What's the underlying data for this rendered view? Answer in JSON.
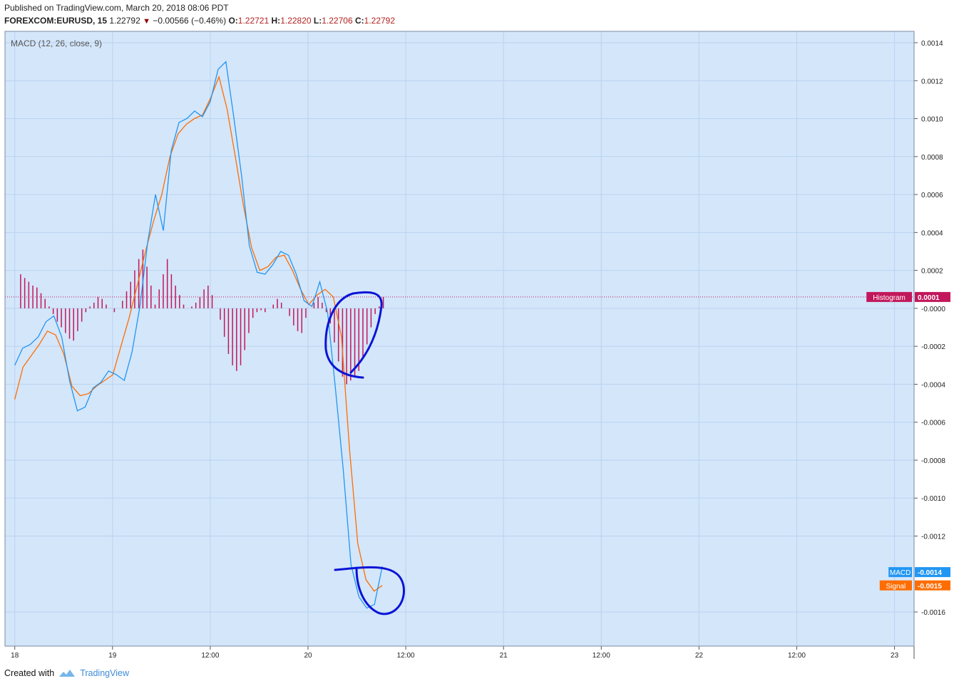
{
  "header": {
    "published": "Published on TradingView.com, March 20, 2018 08:06 PDT",
    "symbol": "FOREXCOM:EURUSD, 15",
    "last": "1.22792",
    "change": "−0.00566 (−0.46%)",
    "o_label": "O:",
    "o_value": "1.22721",
    "h_label": "H:",
    "h_value": "1.22820",
    "l_label": "L:",
    "l_value": "1.22706",
    "c_label": "C:",
    "c_value": "1.22792"
  },
  "footer": {
    "created": "Created with",
    "brand": "TradingView"
  },
  "colors": {
    "background": "#d4e6fa",
    "grid": "#b9d3ef",
    "macd": "#2196f3",
    "signal": "#ff6d00",
    "histogram": "#c2185b",
    "annotation": "#0a14d6"
  },
  "chart_data": {
    "type": "line",
    "title": "MACD (12, 26, close, 9)",
    "x_ticks": [
      "18",
      "19",
      "12:00",
      "20",
      "12:00",
      "21",
      "12:00",
      "22",
      "12:00",
      "23"
    ],
    "y_ticks": [
      "0.0014",
      "0.0012",
      "0.0010",
      "0.0008",
      "0.0006",
      "0.0004",
      "0.0002",
      "-0.0000",
      "-0.0002",
      "-0.0004",
      "-0.0006",
      "-0.0008",
      "-0.0010",
      "-0.0012",
      "-0.0016"
    ],
    "ylim": [
      -0.00178,
      0.00146
    ],
    "xlim": [
      -1,
      92
    ],
    "grid": true,
    "series": [
      {
        "name": "MACD",
        "color": "#2196f3",
        "values": [
          -0.0003,
          -0.00021,
          -0.00019,
          -0.00015,
          -7e-05,
          -4e-05,
          -0.00015,
          -0.00038,
          -0.00054,
          -0.00052,
          -0.00042,
          -0.00039,
          -0.00033,
          -0.00035,
          -0.00038,
          -0.00023,
          1e-05,
          0.00035,
          0.0006,
          0.00041,
          0.00083,
          0.00098,
          0.001,
          0.00104,
          0.00101,
          0.00109,
          0.00126,
          0.0013,
          0.00101,
          0.0007,
          0.00033,
          0.00019,
          0.00018,
          0.00023,
          0.0003,
          0.00028,
          0.00018,
          4e-05,
          1e-05,
          0.00014,
          -2e-05,
          -0.00042,
          -0.00085,
          -0.00135,
          -0.00152,
          -0.00158,
          -0.00156,
          -0.00136
        ]
      },
      {
        "name": "Signal",
        "color": "#ff6d00",
        "values": [
          -0.00048,
          -0.00031,
          -0.00025,
          -0.00019,
          -0.00012,
          -0.00014,
          -0.00024,
          -0.00041,
          -0.00046,
          -0.00045,
          -0.00041,
          -0.00038,
          -0.00035,
          -0.0002,
          -5e-05,
          0.00012,
          0.0003,
          0.00046,
          0.0006,
          0.0008,
          0.00092,
          0.00097,
          0.001,
          0.00102,
          0.00111,
          0.00122,
          0.00105,
          0.0008,
          0.00054,
          0.00032,
          0.0002,
          0.00022,
          0.00027,
          0.00028,
          0.0002,
          0.0001,
          2e-05,
          7e-05,
          0.0001,
          6e-05,
          -0.00015,
          -0.00075,
          -0.00124,
          -0.00143,
          -0.00149,
          -0.00146
        ]
      },
      {
        "name": "Histogram",
        "color": "#c2185b",
        "values": [
          0.00018,
          0.00016,
          0.00014,
          0.00012,
          0.00011,
          8e-05,
          5e-05,
          1e-05,
          -3e-05,
          -7e-05,
          -0.0001,
          -0.00013,
          -0.00016,
          -0.00017,
          -0.00012,
          -7e-05,
          -2e-05,
          1e-05,
          3e-05,
          6e-05,
          5e-05,
          2e-05,
          0.0,
          -2e-05,
          0.0,
          4e-05,
          9e-05,
          0.00014,
          0.0002,
          0.00026,
          0.00031,
          0.00022,
          0.00012,
          2e-05,
          0.0001,
          0.00018,
          0.00026,
          0.00018,
          0.00012,
          7e-05,
          2e-05,
          0.0,
          1e-05,
          3e-05,
          6e-05,
          0.0001,
          0.00012,
          7e-05,
          0.0,
          -6e-05,
          -0.00015,
          -0.00024,
          -0.0003,
          -0.00033,
          -0.0003,
          -0.00022,
          -0.00013,
          -5e-05,
          -2e-05,
          -1e-05,
          -2e-05,
          0.0,
          2e-05,
          5e-05,
          3e-05,
          0.0,
          -4e-05,
          -9e-05,
          -0.00012,
          -0.00013,
          -5e-05,
          0.0,
          3e-05,
          6e-05,
          3e-05,
          -2e-05,
          -8e-05,
          -0.00018,
          -0.00028,
          -0.00036,
          -0.0004,
          -0.00038,
          -0.00036,
          -0.00033,
          -0.00026,
          -0.00019,
          -0.0001,
          -3e-05,
          1e-05,
          6e-05
        ]
      }
    ],
    "labels": {
      "histogram": {
        "name": "Histogram",
        "value": "0.0001",
        "level": 6e-05
      },
      "macd": {
        "name": "MACD",
        "value": "-0.0014",
        "level": -0.00139
      },
      "signal": {
        "name": "Signal",
        "value": "-0.0015",
        "level": -0.00146
      }
    }
  }
}
